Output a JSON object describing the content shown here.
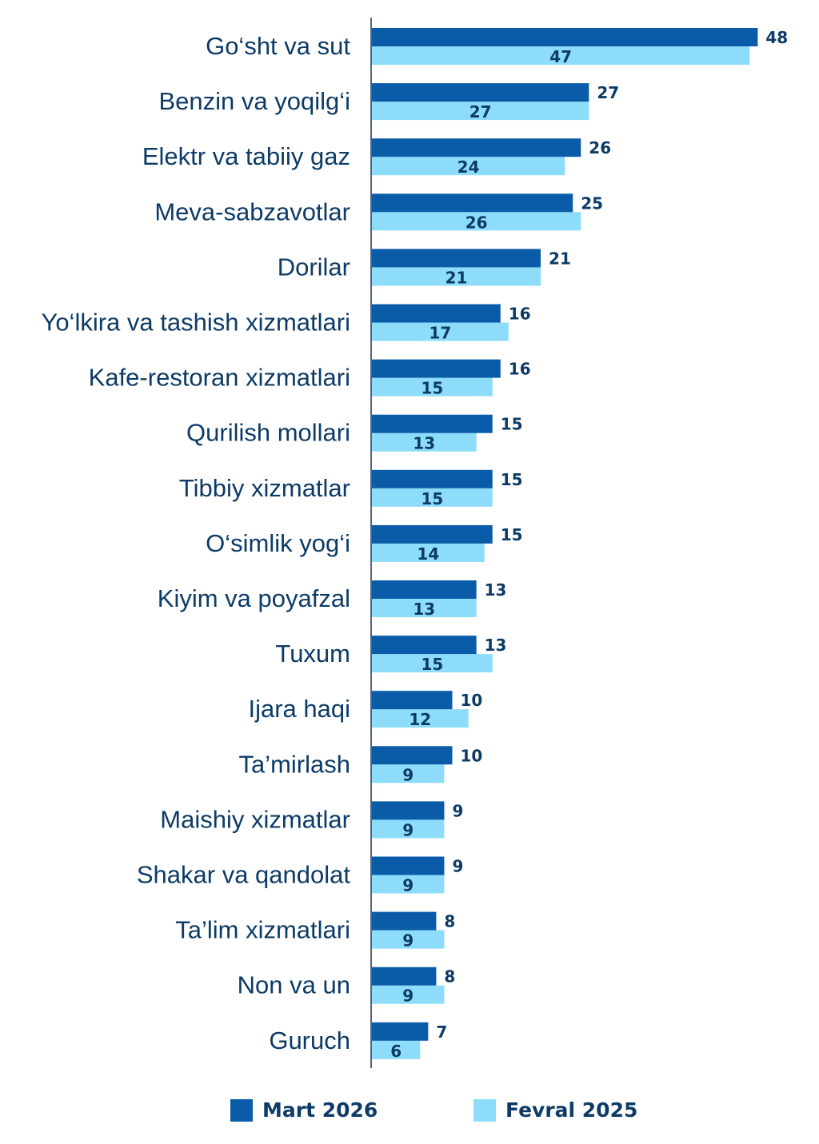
{
  "chart_data": {
    "type": "bar",
    "orientation": "horizontal",
    "categories": [
      "Go‘sht va sut",
      "Benzin va yoqilg‘i",
      "Elektr va tabiiy gaz",
      "Meva-sabzavotlar",
      "Dorilar",
      "Yo‘lkira va tashish xizmatlari",
      "Kafe-restoran xizmatlari",
      "Qurilish mollari",
      "Tibbiy xizmatlar",
      "O‘simlik yog‘i",
      "Kiyim va poyafzal",
      "Tuxum",
      "Ijara haqi",
      "Ta’mirlash",
      "Maishiy xizmatlar",
      "Shakar va qandolat",
      "Ta’lim xizmatlari",
      "Non va un",
      "Guruch"
    ],
    "series": [
      {
        "name": "Mart 2026",
        "color": "#0b5ca8",
        "values": [
          48,
          27,
          26,
          25,
          21,
          16,
          16,
          15,
          15,
          15,
          13,
          13,
          10,
          10,
          9,
          9,
          8,
          8,
          7
        ]
      },
      {
        "name": "Fevral 2025",
        "color": "#8cdcfa",
        "values": [
          47,
          27,
          24,
          26,
          21,
          17,
          15,
          13,
          15,
          14,
          13,
          15,
          12,
          9,
          9,
          9,
          9,
          9,
          6
        ]
      }
    ],
    "xlim": [
      0,
      50
    ],
    "legend_position": "bottom",
    "grid": false
  }
}
